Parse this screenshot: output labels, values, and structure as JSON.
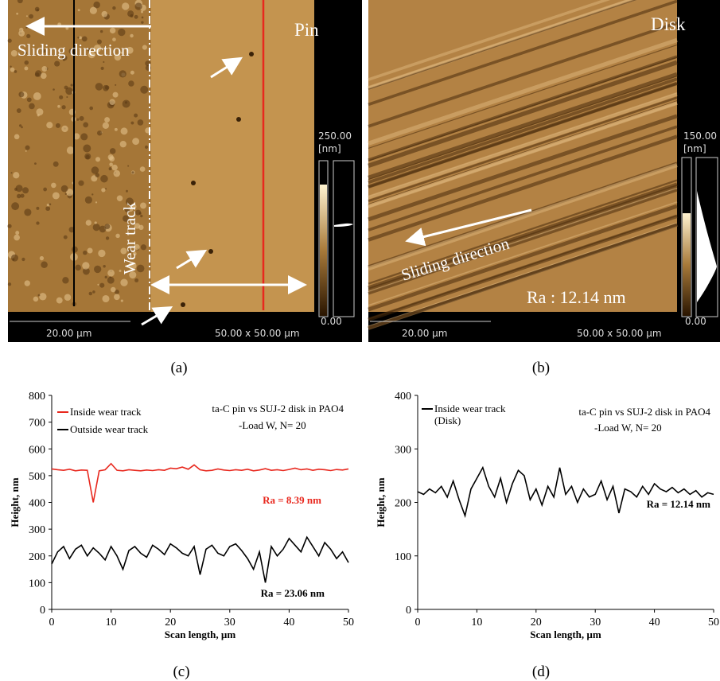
{
  "panels": [
    {
      "label": "(a)",
      "title": "Pin",
      "annotations": [
        "Sliding direction",
        "Wear track"
      ],
      "colorbar_max": "250.00",
      "colorbar_unit": "[nm]",
      "colorbar_min": "0.00",
      "scale_bar": "20.00 µm",
      "scan_size": "50.00 x 50.00 µm"
    },
    {
      "label": "(b)",
      "title": "Disk",
      "annotations": [
        "Sliding direction",
        "Ra : 12.14 nm"
      ],
      "colorbar_max": "150.00",
      "colorbar_unit": "[nm]",
      "colorbar_min": "0.00",
      "scale_bar": "20.00 µm",
      "scan_size": "50.00 x 50.00 µm"
    }
  ],
  "chart_data": [
    {
      "type": "line",
      "label": "(c)",
      "x_label": "Scan length, µm",
      "y_label": "Height, nm",
      "annotations": [
        {
          "text": "ta-C pin vs SUJ-2 disk in PAO4",
          "color": "#000"
        },
        {
          "text": "-Load W, N= 20",
          "color": "#000"
        },
        {
          "text": "Ra = 8.39 nm",
          "color": "#e8281e"
        },
        {
          "text": "Ra = 23.06 nm",
          "color": "#000"
        }
      ],
      "x": [
        0,
        1,
        2,
        3,
        4,
        5,
        6,
        7,
        8,
        9,
        10,
        11,
        12,
        13,
        14,
        15,
        16,
        17,
        18,
        19,
        20,
        21,
        22,
        23,
        24,
        25,
        26,
        27,
        28,
        29,
        30,
        31,
        32,
        33,
        34,
        35,
        36,
        37,
        38,
        39,
        40,
        41,
        42,
        43,
        44,
        45,
        46,
        47,
        48,
        49,
        50
      ],
      "series": [
        {
          "name": "Inside wear track",
          "color": "#e8281e",
          "values": [
            525,
            522,
            520,
            524,
            518,
            521,
            520,
            400,
            518,
            522,
            545,
            520,
            518,
            522,
            520,
            518,
            521,
            519,
            522,
            520,
            528,
            526,
            532,
            524,
            540,
            522,
            518,
            520,
            525,
            521,
            519,
            522,
            520,
            524,
            518,
            521,
            526,
            520,
            522,
            519,
            523,
            528,
            522,
            525,
            520,
            524,
            522,
            519,
            523,
            521,
            525
          ]
        },
        {
          "name": "Outside wear track",
          "color": "#000000",
          "values": [
            170,
            215,
            235,
            190,
            225,
            240,
            200,
            230,
            210,
            185,
            235,
            200,
            150,
            220,
            235,
            210,
            195,
            240,
            225,
            205,
            245,
            230,
            210,
            200,
            235,
            130,
            225,
            240,
            210,
            200,
            235,
            245,
            220,
            190,
            150,
            215,
            100,
            235,
            200,
            225,
            265,
            240,
            215,
            270,
            235,
            200,
            250,
            225,
            190,
            215,
            175
          ]
        }
      ],
      "xlim": [
        0,
        50
      ],
      "xticks": [
        0,
        10,
        20,
        30,
        40,
        50
      ],
      "ylim": [
        0,
        800
      ],
      "yticks": [
        0,
        100,
        200,
        300,
        400,
        500,
        600,
        700,
        800
      ]
    },
    {
      "type": "line",
      "label": "(d)",
      "x_label": "Scan length, µm",
      "y_label": "Height, nm",
      "annotations": [
        {
          "text": "ta-C pin vs SUJ-2 disk in PAO4",
          "color": "#000"
        },
        {
          "text": "-Load W, N= 20",
          "color": "#000"
        },
        {
          "text": "Ra = 12.14 nm",
          "color": "#000"
        }
      ],
      "x": [
        0,
        1,
        2,
        3,
        4,
        5,
        6,
        7,
        8,
        9,
        10,
        11,
        12,
        13,
        14,
        15,
        16,
        17,
        18,
        19,
        20,
        21,
        22,
        23,
        24,
        25,
        26,
        27,
        28,
        29,
        30,
        31,
        32,
        33,
        34,
        35,
        36,
        37,
        38,
        39,
        40,
        41,
        42,
        43,
        44,
        45,
        46,
        47,
        48,
        49,
        50
      ],
      "series": [
        {
          "name": "Inside wear track (Disk)",
          "color": "#000000",
          "values": [
            220,
            215,
            225,
            218,
            230,
            210,
            240,
            205,
            175,
            225,
            245,
            265,
            230,
            210,
            245,
            200,
            235,
            260,
            250,
            205,
            225,
            195,
            230,
            210,
            265,
            215,
            230,
            200,
            225,
            210,
            215,
            240,
            205,
            230,
            180,
            225,
            220,
            210,
            230,
            215,
            235,
            225,
            220,
            228,
            218,
            225,
            215,
            222,
            210,
            218,
            215
          ]
        }
      ],
      "xlim": [
        0,
        50
      ],
      "xticks": [
        0,
        10,
        20,
        30,
        40,
        50
      ],
      "ylim": [
        0,
        400
      ],
      "yticks": [
        0,
        100,
        200,
        300,
        400
      ]
    }
  ]
}
